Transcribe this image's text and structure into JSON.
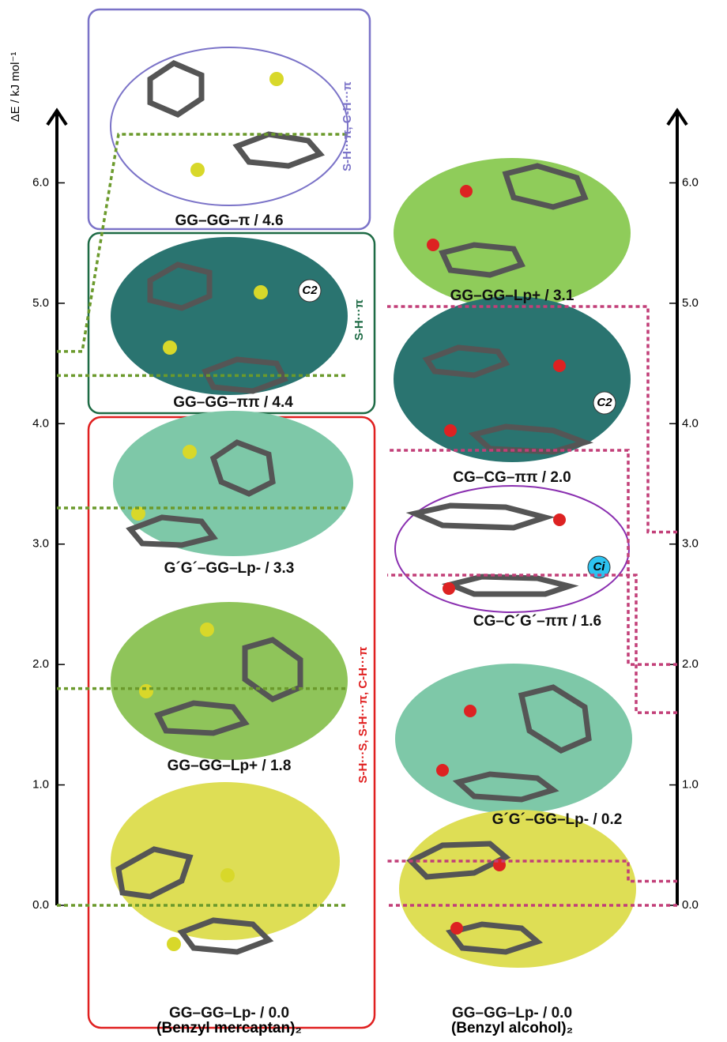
{
  "chart_data": {
    "type": "energy-level",
    "ylabel": "ΔE / kJ mol⁻¹",
    "ylim": [
      0,
      6.6
    ],
    "yticks": [
      {
        "value": 0,
        "label": "0.0"
      },
      {
        "value": 1,
        "label": "1.0"
      },
      {
        "value": 2,
        "label": "2.0"
      },
      {
        "value": 3,
        "label": "3.0"
      },
      {
        "value": 4,
        "label": "4.0"
      },
      {
        "value": 5,
        "label": "5.0"
      },
      {
        "value": 6,
        "label": "6.0"
      }
    ],
    "y2lim": [
      0,
      6.6
    ],
    "y2ticks": [
      {
        "value": 0,
        "label": "0.0"
      },
      {
        "value": 1,
        "label": "1.0"
      },
      {
        "value": 2,
        "label": "2.0"
      },
      {
        "value": 3,
        "label": "3.0"
      },
      {
        "value": 4,
        "label": "4.0"
      },
      {
        "value": 5,
        "label": "5.0"
      },
      {
        "value": 6,
        "label": "6.0"
      }
    ],
    "series": [
      {
        "name": "(Benzyl mercaptan)₂",
        "color": "#6b9a2c",
        "labels": [
          "GG–GG–π / 4.6",
          "GG–GG–ππ / 4.4",
          "G´G´–GG–Lp- / 3.3",
          "GG–GG–Lp+ / 1.8",
          "GG–GG–Lp- / 0.0"
        ],
        "values": [
          4.6,
          4.4,
          3.3,
          1.8,
          0.0
        ]
      },
      {
        "name": "(Benzyl alcohol)₂",
        "color": "#c23f78",
        "axis": "y2",
        "labels": [
          "GG–GG–Lp+ / 3.1",
          "CG–CG–ππ / 2.0",
          "CG–C´G´–ππ / 1.6",
          "G´G´–GG–Lp- / 0.2",
          "GG–GG–Lp- / 0.0"
        ],
        "values": [
          3.1,
          2.0,
          1.6,
          0.2,
          0.0
        ]
      }
    ],
    "annotations": [
      "S-H···π, C-H···π",
      "S-H···π",
      "S-H···S, S-H···π, C-H···π",
      "C2",
      "C2",
      "Ci"
    ]
  }
}
